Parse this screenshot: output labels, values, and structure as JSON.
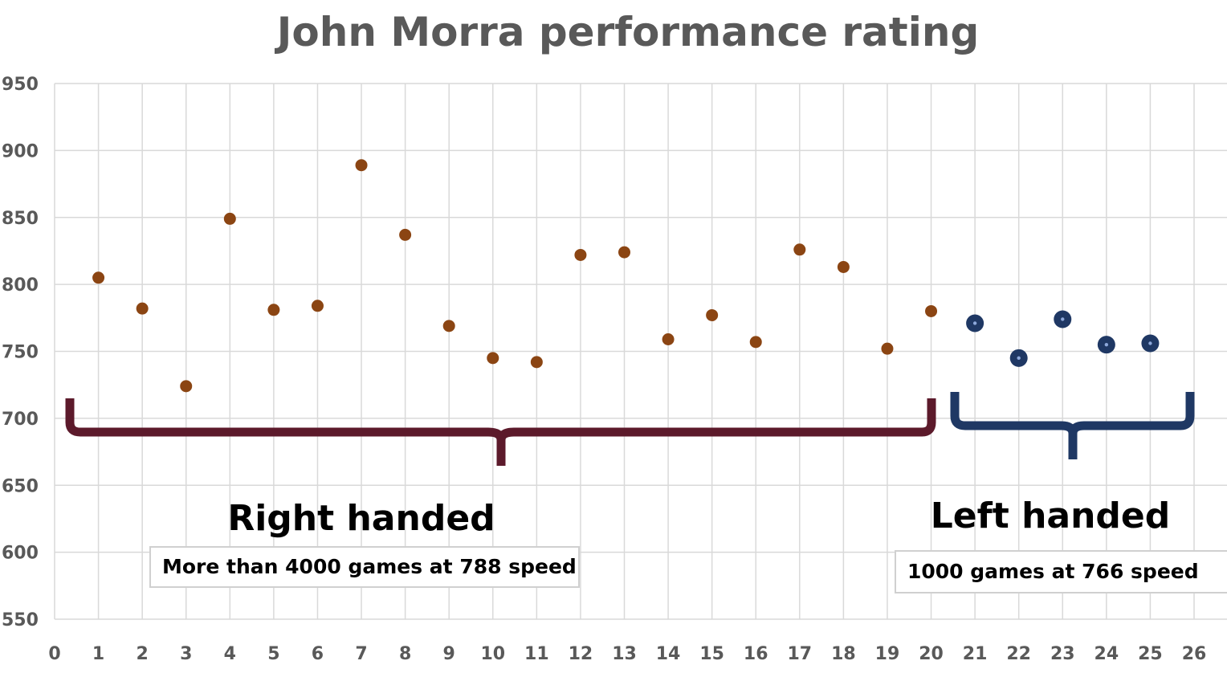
{
  "chart_data": {
    "type": "scatter",
    "title": "John Morra performance rating",
    "xlabel": "",
    "ylabel": "",
    "xlim": [
      0,
      26
    ],
    "ylim": [
      550,
      950
    ],
    "x_ticks": [
      "0",
      "1",
      "2",
      "3",
      "4",
      "5",
      "6",
      "7",
      "8",
      "9",
      "10",
      "11",
      "12",
      "13",
      "14",
      "15",
      "16",
      "17",
      "18",
      "19",
      "20",
      "21",
      "22",
      "23",
      "24",
      "25",
      "26"
    ],
    "y_ticks": [
      "550",
      "600",
      "650",
      "700",
      "750",
      "800",
      "850",
      "900",
      "950"
    ],
    "grid": true,
    "series": [
      {
        "color": "#8B4513",
        "points": [
          {
            "x": 1,
            "y": 805
          },
          {
            "x": 2,
            "y": 782
          },
          {
            "x": 3,
            "y": 724
          },
          {
            "x": 4,
            "y": 849
          },
          {
            "x": 5,
            "y": 781
          },
          {
            "x": 6,
            "y": 784
          },
          {
            "x": 7,
            "y": 889
          },
          {
            "x": 8,
            "y": 837
          },
          {
            "x": 9,
            "y": 769
          },
          {
            "x": 10,
            "y": 745
          },
          {
            "x": 11,
            "y": 742
          },
          {
            "x": 12,
            "y": 822
          },
          {
            "x": 13,
            "y": 824
          },
          {
            "x": 14,
            "y": 759
          },
          {
            "x": 15,
            "y": 777
          },
          {
            "x": 16,
            "y": 757
          },
          {
            "x": 17,
            "y": 826
          },
          {
            "x": 18,
            "y": 813
          },
          {
            "x": 19,
            "y": 752
          },
          {
            "x": 20,
            "y": 780
          }
        ]
      },
      {
        "color": "#1F3864",
        "points": [
          {
            "x": 21,
            "y": 771
          },
          {
            "x": 22,
            "y": 745
          },
          {
            "x": 23,
            "y": 774
          },
          {
            "x": 24,
            "y": 755
          },
          {
            "x": 25,
            "y": 756
          }
        ]
      }
    ],
    "annotations": {
      "right": {
        "label": "Right handed",
        "note": "More than 4000 games at 788 speed",
        "brace_color": "#5C1A2B"
      },
      "left": {
        "label": "Left handed",
        "note": "1000 games at 766 speed",
        "brace_color": "#1F3864"
      }
    }
  }
}
